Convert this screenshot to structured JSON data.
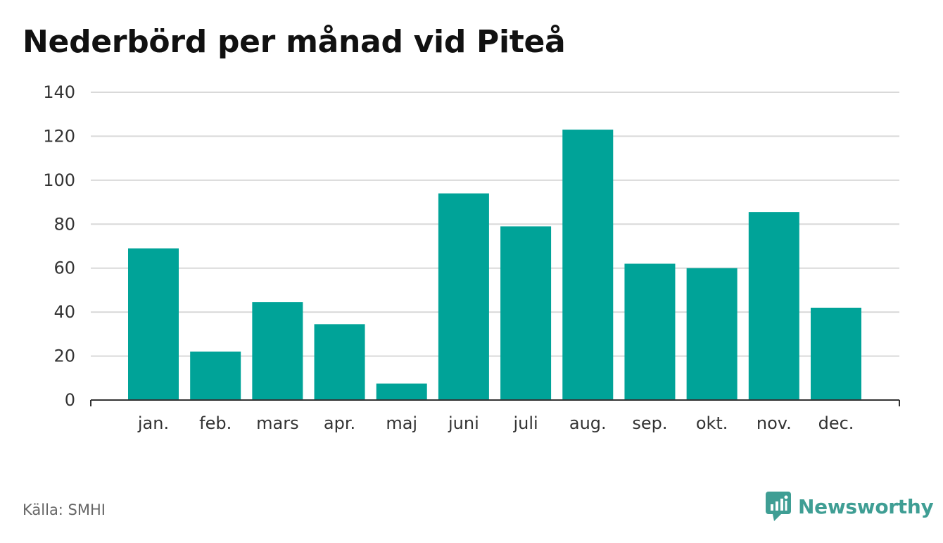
{
  "title": "Nederbörd per månad vid Piteå",
  "source": "Källa: SMHI",
  "brand": {
    "name": "Newsworthy",
    "icon": "newsworthy-logo-icon",
    "color": "#3f9e94"
  },
  "chart_data": {
    "type": "bar",
    "title": "Nederbörd per månad vid Piteå",
    "categories": [
      "jan.",
      "feb.",
      "mars",
      "apr.",
      "maj",
      "juni",
      "juli",
      "aug.",
      "sep.",
      "okt.",
      "nov.",
      "dec."
    ],
    "values": [
      69,
      22,
      44.5,
      34.5,
      7.5,
      94,
      79,
      123,
      62,
      60,
      85.5,
      42
    ],
    "ylim": [
      0,
      140
    ],
    "yticks": [
      0,
      20,
      40,
      60,
      80,
      100,
      120,
      140
    ],
    "grid": true,
    "bar_color": "#00a398",
    "grid_color": "#d9d9d9",
    "axis_color": "#333333"
  }
}
